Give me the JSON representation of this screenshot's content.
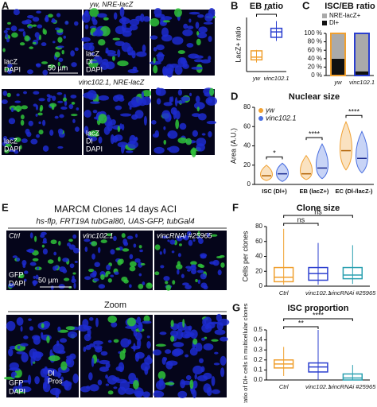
{
  "panels": {
    "A": {
      "label": "A",
      "row1_title": "yw, NRE-lacZ",
      "row2_title": "vinc102.1, NRE-lacZ",
      "row1_labels": [
        "lacZ",
        "DAPI"
      ],
      "row1_scale": "50 µm",
      "row1_zoom_labels": [
        "lacZ",
        "Dl",
        "DAPI"
      ],
      "row2_labels": [
        "lacZ",
        "DAPI"
      ],
      "row2_zoom_labels": [
        "lacZ",
        "Dl",
        "DAPI"
      ]
    },
    "E": {
      "label": "E",
      "title": "MARCM Clones  14 days ACI",
      "genotype": "hs-flp, FRT19A tubGal80, UAS-GFP, tubGal4",
      "images": [
        "Ctrl",
        "vinc102.1",
        "vincRNAi #25965"
      ],
      "image_labels": [
        "GFP",
        "DAPI"
      ],
      "scale": "50 µm",
      "zoom": "Zoom",
      "zoom_labels": [
        "GFP",
        "DAPI"
      ],
      "zoom_marker_labels": [
        "Dl",
        "Pros"
      ]
    }
  },
  "chart_data": [
    {
      "panel": "B",
      "type": "box",
      "title": "EB ratio",
      "ylabel": "LacZ+ ratio",
      "categories": [
        "yw",
        "vinc102.1"
      ],
      "colors": [
        "#f0a030",
        "#2b3fcf"
      ],
      "boxes": [
        {
          "min": 10,
          "q1": 11.5,
          "median": 13,
          "q3": 16.5,
          "max": 17
        },
        {
          "min": 22,
          "q1": 24,
          "median": 27,
          "q3": 29,
          "max": 33
        }
      ],
      "ylim": [
        5,
        35
      ],
      "significance": [
        "**"
      ]
    },
    {
      "panel": "C",
      "type": "stacked_bar",
      "title": "ISC/EB ratio",
      "categories": [
        "yw",
        "vinc102.1"
      ],
      "edge_colors": [
        "#f0a030",
        "#2b3fcf"
      ],
      "series": [
        {
          "name": "Dl+",
          "color": "#111111",
          "values": [
            40,
            10
          ]
        },
        {
          "name": "NRE-lacZ+",
          "color": "#aaaaaa",
          "values": [
            60,
            90
          ]
        }
      ],
      "ylim": [
        0,
        100
      ],
      "yticks": [
        {
          "value": 0,
          "label": "0 %"
        },
        {
          "value": 20,
          "label": "20 %"
        },
        {
          "value": 40,
          "label": "40 %"
        },
        {
          "value": 60,
          "label": "60 %"
        },
        {
          "value": 80,
          "label": "80 %"
        },
        {
          "value": 100,
          "label": "100 %"
        }
      ]
    },
    {
      "panel": "D",
      "type": "violin",
      "title": "Nuclear size",
      "ylabel": "Area (A.U.)",
      "categories": [
        "ISC (Dl+)",
        "EB (lacZ+)",
        "EC (Dl-/lacZ-)"
      ],
      "series": [
        {
          "name": "yw",
          "color": "#f0a030",
          "median": [
            9,
            11,
            35
          ],
          "min": [
            4,
            5,
            15
          ],
          "max": [
            20,
            30,
            65
          ]
        },
        {
          "name": "vinc102.1",
          "color": "#4a6fe0",
          "median": [
            11,
            17,
            27
          ],
          "min": [
            3,
            6,
            12
          ],
          "max": [
            22,
            42,
            55
          ]
        }
      ],
      "ylim": [
        0,
        80
      ],
      "yticks": [
        0,
        20,
        40,
        60,
        80
      ],
      "significance": [
        "*",
        "****",
        "****"
      ]
    },
    {
      "panel": "F",
      "type": "box",
      "title": "Clone size",
      "ylabel": "Cells per clones",
      "categories": [
        "Ctrl",
        "vinc102.1",
        "vincRNAi #25965"
      ],
      "colors": [
        "#f0a030",
        "#2b3fcf",
        "#2aa0b0"
      ],
      "boxes": [
        {
          "min": 2,
          "q1": 6,
          "median": 12,
          "q3": 25,
          "max": 77
        },
        {
          "min": 2,
          "q1": 8,
          "median": 17,
          "q3": 25,
          "max": 58
        },
        {
          "min": 3,
          "q1": 10,
          "median": 15,
          "q3": 25,
          "max": 55
        }
      ],
      "ylim": [
        0,
        80
      ],
      "yticks": [
        0,
        20,
        40,
        60,
        80
      ],
      "significance": [
        "ns",
        "ns"
      ]
    },
    {
      "panel": "G",
      "type": "box",
      "title": "ISC proportion",
      "ylabel": "Ratio of Dl+ cells in multicellular clones",
      "categories": [
        "Ctrl",
        "vinc102.1",
        "vincRNAi #25965"
      ],
      "colors": [
        "#f0a030",
        "#2b3fcf",
        "#2aa0b0"
      ],
      "boxes": [
        {
          "min": 0.04,
          "q1": 0.12,
          "median": 0.16,
          "q3": 0.2,
          "max": 0.33
        },
        {
          "min": 0,
          "q1": 0.08,
          "median": 0.13,
          "q3": 0.17,
          "max": 0.5
        },
        {
          "min": 0,
          "q1": 0,
          "median": 0.02,
          "q3": 0.06,
          "max": 0.15
        }
      ],
      "ylim": [
        0,
        0.5
      ],
      "yticks": [
        {
          "value": 0,
          "label": "0.0"
        },
        {
          "value": 0.1,
          "label": "0.1"
        },
        {
          "value": 0.2,
          "label": "0.2"
        },
        {
          "value": 0.3,
          "label": "0.3"
        },
        {
          "value": 0.4,
          "label": "0.4"
        },
        {
          "value": 0.5,
          "label": "0.5"
        }
      ],
      "significance": [
        "**",
        "****"
      ]
    }
  ]
}
